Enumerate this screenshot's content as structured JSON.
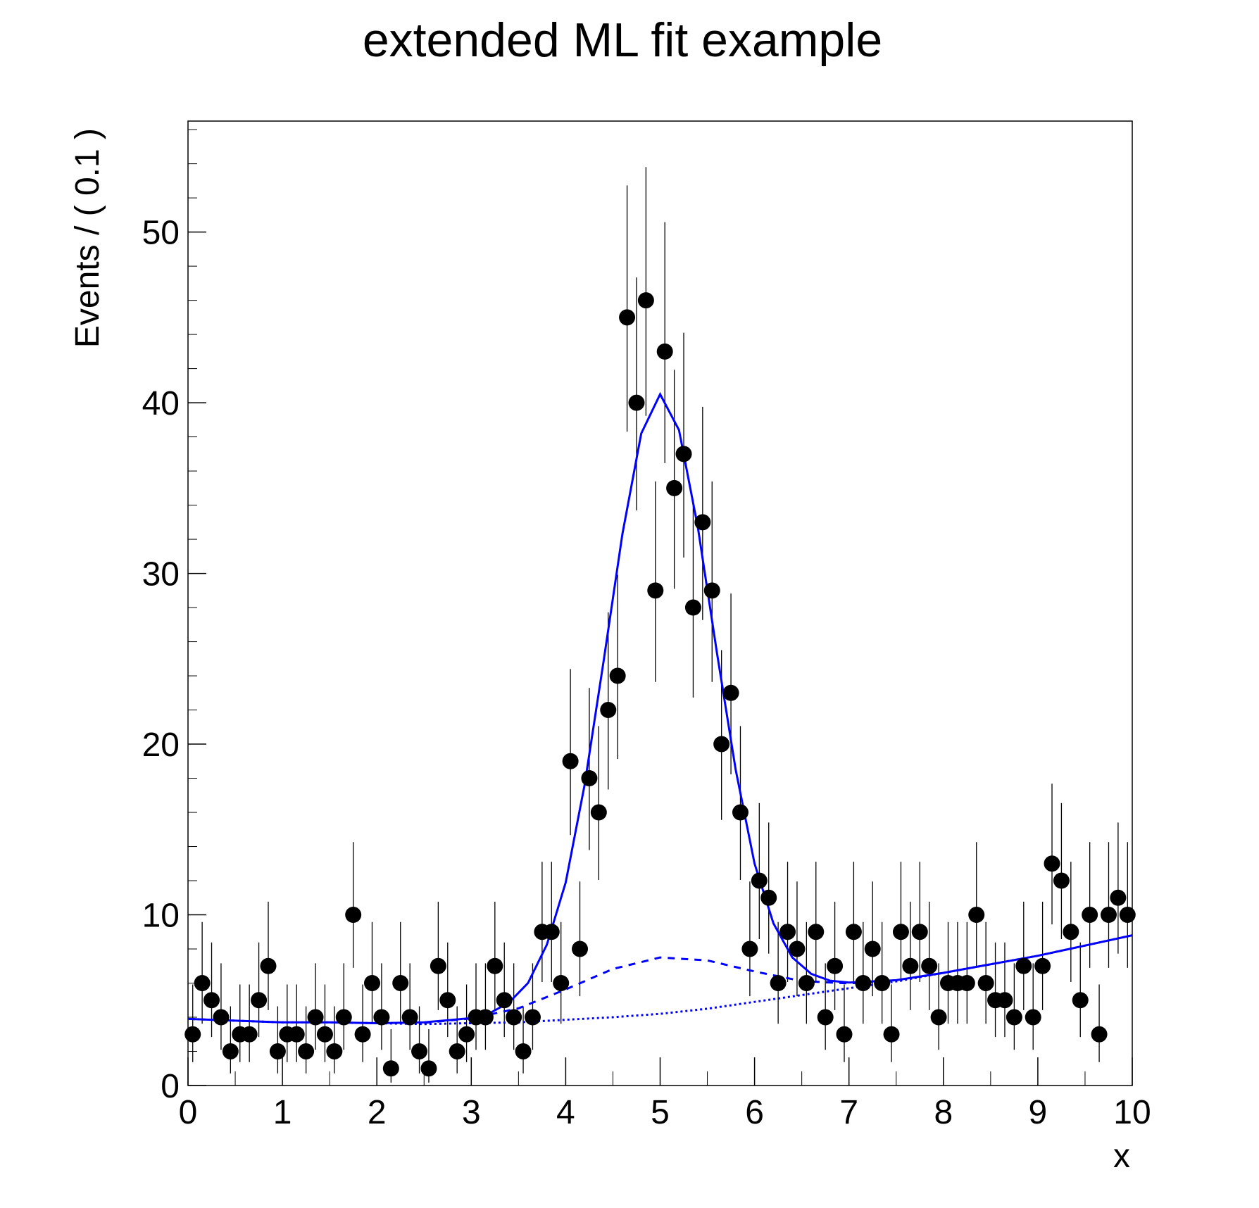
{
  "chart_data": {
    "type": "errorbar-fit",
    "title": "extended ML fit example",
    "y_label": "Events / ( 0.1 )",
    "x_label": "x",
    "xlim": [
      0,
      10
    ],
    "xticks": [
      0,
      1,
      2,
      3,
      4,
      5,
      6,
      7,
      8,
      9,
      10
    ],
    "ylim": [
      0,
      56.5
    ],
    "yticks": [
      0,
      10,
      20,
      30,
      40,
      50
    ],
    "points": {
      "color": "#000000",
      "x": [
        0.05,
        0.15,
        0.25,
        0.35,
        0.45,
        0.55,
        0.65,
        0.75,
        0.85,
        0.95,
        1.05,
        1.15,
        1.25,
        1.35,
        1.45,
        1.55,
        1.65,
        1.75,
        1.85,
        1.95,
        2.05,
        2.15,
        2.25,
        2.35,
        2.45,
        2.55,
        2.65,
        2.75,
        2.85,
        2.95,
        3.05,
        3.15,
        3.25,
        3.35,
        3.45,
        3.55,
        3.65,
        3.75,
        3.85,
        3.95,
        4.05,
        4.15,
        4.25,
        4.35,
        4.45,
        4.55,
        4.65,
        4.75,
        4.85,
        4.95,
        5.05,
        5.15,
        5.25,
        5.35,
        5.45,
        5.55,
        5.65,
        5.75,
        5.85,
        5.95,
        6.05,
        6.15,
        6.25,
        6.35,
        6.45,
        6.55,
        6.65,
        6.75,
        6.85,
        6.95,
        7.05,
        7.15,
        7.25,
        7.35,
        7.45,
        7.55,
        7.65,
        7.75,
        7.85,
        7.95,
        8.05,
        8.15,
        8.25,
        8.35,
        8.45,
        8.55,
        8.65,
        8.75,
        8.85,
        8.95,
        9.05,
        9.15,
        9.25,
        9.35,
        9.45,
        9.55,
        9.65,
        9.75,
        9.85,
        9.95
      ],
      "values": [
        3,
        6,
        5,
        4,
        2,
        3,
        3,
        5,
        7,
        2,
        3,
        3,
        2,
        4,
        3,
        2,
        4,
        10,
        3,
        6,
        4,
        1,
        6,
        4,
        2,
        1,
        7,
        5,
        2,
        3,
        4,
        4,
        7,
        5,
        4,
        2,
        4,
        9,
        9,
        6,
        19,
        8,
        18,
        16,
        22,
        24,
        45,
        40,
        46,
        29,
        43,
        35,
        37,
        28,
        33,
        29,
        20,
        23,
        16,
        8,
        12,
        11,
        6,
        9,
        8,
        6,
        9,
        4,
        7,
        3,
        9,
        6,
        8,
        6,
        3,
        9,
        7,
        9,
        7,
        4,
        6,
        6,
        6,
        10,
        6,
        5,
        5,
        4,
        7,
        4,
        7,
        13,
        12,
        9,
        5,
        10,
        3,
        10,
        11,
        10
      ],
      "errors_low": [
        1.63,
        2.38,
        2.16,
        1.91,
        1.29,
        1.63,
        1.63,
        2.16,
        2.58,
        1.29,
        1.63,
        1.63,
        1.29,
        1.91,
        1.63,
        1.29,
        1.91,
        3.11,
        1.63,
        2.38,
        1.91,
        0.83,
        2.38,
        1.91,
        1.29,
        0.83,
        2.58,
        2.16,
        1.29,
        1.63,
        1.91,
        1.91,
        2.58,
        2.16,
        1.91,
        1.29,
        1.91,
        2.94,
        2.94,
        2.38,
        4.33,
        2.77,
        4.21,
        3.96,
        4.66,
        4.87,
        6.69,
        6.31,
        6.77,
        5.36,
        6.54,
        5.9,
        6.07,
        5.27,
        5.73,
        5.36,
        4.44,
        4.77,
        3.96,
        2.77,
        3.42,
        3.27,
        2.38,
        2.94,
        2.77,
        2.38,
        2.94,
        1.91,
        2.58,
        1.63,
        2.94,
        2.38,
        2.77,
        2.38,
        1.63,
        2.94,
        2.58,
        2.94,
        2.58,
        1.91,
        2.38,
        2.38,
        2.38,
        3.11,
        2.38,
        2.16,
        2.16,
        1.91,
        2.58,
        1.91,
        2.58,
        3.56,
        3.42,
        2.94,
        2.16,
        3.11,
        1.63,
        3.11,
        3.27,
        3.11
      ],
      "errors_high": [
        2.92,
        3.58,
        3.38,
        3.16,
        2.64,
        2.92,
        2.92,
        3.38,
        3.77,
        2.64,
        2.92,
        2.92,
        2.64,
        3.16,
        2.92,
        2.64,
        3.16,
        4.26,
        2.92,
        3.58,
        3.16,
        2.3,
        3.58,
        3.16,
        2.64,
        2.3,
        3.77,
        3.38,
        2.64,
        2.92,
        3.16,
        3.16,
        3.77,
        3.38,
        3.16,
        2.64,
        3.16,
        4.11,
        4.11,
        3.58,
        5.4,
        3.95,
        5.29,
        5.06,
        5.72,
        5.92,
        7.73,
        7.34,
        7.81,
        6.39,
        7.58,
        6.93,
        7.1,
        6.3,
        6.76,
        6.39,
        5.51,
        5.82,
        5.06,
        3.95,
        4.55,
        4.41,
        3.58,
        4.11,
        3.95,
        3.58,
        4.11,
        3.16,
        3.77,
        2.92,
        4.11,
        3.58,
        3.95,
        3.58,
        2.92,
        4.11,
        3.77,
        4.11,
        3.77,
        3.16,
        3.58,
        3.58,
        3.58,
        4.26,
        3.58,
        3.38,
        3.38,
        3.16,
        3.77,
        3.16,
        3.77,
        4.68,
        4.55,
        4.11,
        3.38,
        4.26,
        2.92,
        4.26,
        4.41,
        4.26
      ]
    },
    "curves": [
      {
        "style": "solid",
        "color": "#0000ff",
        "x": [
          0,
          0.5,
          1,
          1.5,
          2,
          2.5,
          3,
          3.2,
          3.4,
          3.6,
          3.8,
          4,
          4.2,
          4.4,
          4.6,
          4.8,
          5,
          5.2,
          5.4,
          5.6,
          5.8,
          6,
          6.2,
          6.4,
          6.6,
          6.8,
          7,
          7.5,
          8,
          8.5,
          9,
          9.5,
          10
        ],
        "values": [
          3.9,
          3.8,
          3.7,
          3.7,
          3.65,
          3.7,
          3.95,
          4.25,
          4.86,
          6.0,
          8.25,
          11.9,
          17.6,
          24.8,
          32.3,
          38.2,
          40.5,
          38.4,
          32.7,
          25.4,
          18.5,
          13.0,
          9.5,
          7.5,
          6.54,
          6.14,
          6.03,
          6.17,
          6.6,
          7.1,
          7.6,
          8.2,
          8.8
        ]
      },
      {
        "style": "dashed",
        "color": "#0000ff",
        "x": [
          2.5,
          3,
          3.5,
          4,
          4.5,
          5,
          5.5,
          6,
          6.5,
          7,
          7.5
        ],
        "values": [
          3.67,
          3.93,
          4.52,
          5.63,
          6.83,
          7.5,
          7.33,
          6.68,
          6.12,
          5.98,
          6.17
        ]
      },
      {
        "style": "dotted",
        "color": "#0000ff",
        "x": [
          0,
          0.5,
          1,
          1.5,
          2,
          2.5,
          3,
          3.5,
          4,
          4.5,
          5,
          5.5,
          6,
          6.5,
          7,
          7.5,
          8,
          8.5,
          9,
          9.5,
          10
        ],
        "values": [
          3.9,
          3.8,
          3.7,
          3.7,
          3.65,
          3.6,
          3.65,
          3.7,
          3.85,
          4.0,
          4.2,
          4.5,
          4.9,
          5.3,
          5.7,
          6.1,
          6.6,
          7.1,
          7.6,
          8.2,
          8.8
        ]
      }
    ]
  }
}
